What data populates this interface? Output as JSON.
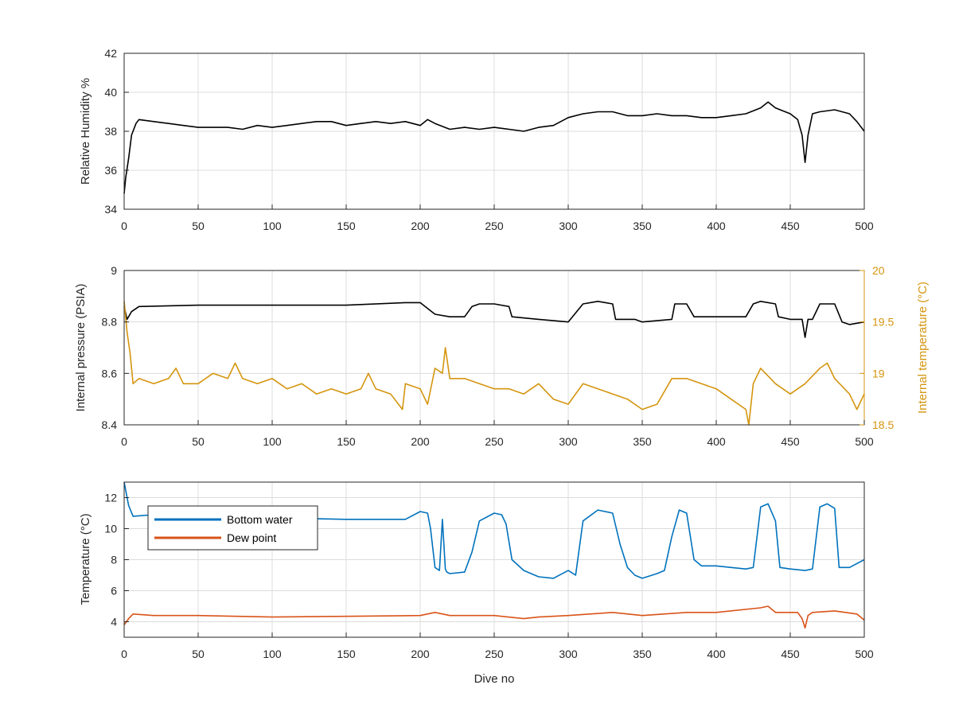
{
  "colors": {
    "black_series": "#000000",
    "internal_temperature": "#D4950F",
    "bottom_water": "#0072BD",
    "dew_point": "#D95319",
    "grid": "#DCDCDC",
    "axis": "#262626"
  },
  "chart_data": [
    {
      "type": "line",
      "xlabel": "",
      "ylabel": "Relative Humidity %",
      "xlim": [
        0,
        500
      ],
      "ylim": [
        34,
        42
      ],
      "xticks": [
        0,
        50,
        100,
        150,
        200,
        250,
        300,
        350,
        400,
        450,
        500
      ],
      "yticks": [
        34,
        36,
        38,
        40,
        42
      ],
      "grid": true,
      "series": [
        {
          "color": "#000000",
          "x": [
            0,
            1,
            3,
            5,
            8,
            10,
            20,
            30,
            40,
            50,
            60,
            70,
            80,
            90,
            100,
            110,
            120,
            130,
            140,
            150,
            160,
            170,
            180,
            190,
            200,
            205,
            210,
            220,
            230,
            240,
            250,
            260,
            270,
            280,
            290,
            300,
            310,
            320,
            330,
            340,
            350,
            360,
            370,
            380,
            390,
            400,
            410,
            420,
            430,
            435,
            440,
            450,
            455,
            458,
            460,
            462,
            465,
            470,
            480,
            490,
            495,
            500
          ],
          "y": [
            34.8,
            35.6,
            36.6,
            37.8,
            38.4,
            38.6,
            38.5,
            38.4,
            38.3,
            38.2,
            38.2,
            38.2,
            38.1,
            38.3,
            38.2,
            38.3,
            38.4,
            38.5,
            38.5,
            38.3,
            38.4,
            38.5,
            38.4,
            38.5,
            38.3,
            38.6,
            38.4,
            38.1,
            38.2,
            38.1,
            38.2,
            38.1,
            38.0,
            38.2,
            38.3,
            38.7,
            38.9,
            39.0,
            39.0,
            38.8,
            38.8,
            38.9,
            38.8,
            38.8,
            38.7,
            38.7,
            38.8,
            38.9,
            39.2,
            39.5,
            39.2,
            38.9,
            38.6,
            37.8,
            36.4,
            37.8,
            38.9,
            39.0,
            39.1,
            38.9,
            38.5,
            38.0
          ]
        }
      ]
    },
    {
      "type": "line",
      "xlabel": "",
      "ylabel": "Internal pressure (PSIA)",
      "y2label": "Internal temperature (°C)",
      "xlim": [
        0,
        500
      ],
      "ylim": [
        8.4,
        9.0
      ],
      "y2lim": [
        18.5,
        20
      ],
      "xticks": [
        0,
        50,
        100,
        150,
        200,
        250,
        300,
        350,
        400,
        450,
        500
      ],
      "yticks": [
        8.4,
        8.6,
        8.8,
        9.0
      ],
      "yticklabels": [
        "8.4",
        "8.6",
        "8.8",
        "9"
      ],
      "y2ticks": [
        18.5,
        19,
        19.5,
        20
      ],
      "y2ticklabels": [
        "18.5",
        "19",
        "19.5",
        "20"
      ],
      "grid": true,
      "series": [
        {
          "axis": "left",
          "color": "#000000",
          "x": [
            0,
            2,
            5,
            10,
            50,
            100,
            150,
            190,
            200,
            210,
            220,
            230,
            235,
            240,
            250,
            260,
            262,
            280,
            300,
            310,
            320,
            330,
            332,
            345,
            350,
            370,
            372,
            380,
            385,
            420,
            425,
            430,
            440,
            442,
            450,
            458,
            460,
            462,
            465,
            470,
            480,
            485,
            490,
            500
          ],
          "y": [
            8.86,
            8.81,
            8.84,
            8.86,
            8.865,
            8.865,
            8.865,
            8.875,
            8.875,
            8.83,
            8.82,
            8.82,
            8.86,
            8.87,
            8.87,
            8.86,
            8.82,
            8.81,
            8.8,
            8.87,
            8.88,
            8.87,
            8.81,
            8.81,
            8.8,
            8.81,
            8.87,
            8.87,
            8.82,
            8.82,
            8.87,
            8.88,
            8.87,
            8.82,
            8.81,
            8.81,
            8.74,
            8.81,
            8.81,
            8.87,
            8.87,
            8.8,
            8.79,
            8.8
          ]
        },
        {
          "axis": "right",
          "color": "#D4950F",
          "x": [
            0,
            2,
            4,
            6,
            10,
            20,
            30,
            35,
            40,
            50,
            60,
            70,
            75,
            80,
            90,
            100,
            110,
            120,
            130,
            140,
            150,
            160,
            165,
            170,
            180,
            188,
            190,
            200,
            205,
            210,
            215,
            217,
            220,
            230,
            240,
            250,
            260,
            270,
            280,
            290,
            300,
            310,
            320,
            330,
            340,
            350,
            360,
            370,
            380,
            390,
            400,
            410,
            420,
            422,
            425,
            430,
            440,
            450,
            460,
            470,
            475,
            480,
            490,
            495,
            500
          ],
          "y": [
            19.7,
            19.4,
            19.2,
            18.9,
            18.95,
            18.9,
            18.95,
            19.05,
            18.9,
            18.9,
            19.0,
            18.95,
            19.1,
            18.95,
            18.9,
            18.95,
            18.85,
            18.9,
            18.8,
            18.85,
            18.8,
            18.85,
            19.0,
            18.85,
            18.8,
            18.65,
            18.9,
            18.85,
            18.7,
            19.05,
            19.0,
            19.25,
            18.95,
            18.95,
            18.9,
            18.85,
            18.85,
            18.8,
            18.9,
            18.75,
            18.7,
            18.9,
            18.85,
            18.8,
            18.75,
            18.65,
            18.7,
            18.95,
            18.95,
            18.9,
            18.85,
            18.75,
            18.65,
            18.5,
            18.9,
            19.05,
            18.9,
            18.8,
            18.9,
            19.05,
            19.1,
            18.95,
            18.8,
            18.65,
            18.8
          ]
        }
      ]
    },
    {
      "type": "line",
      "xlabel": "Dive no",
      "ylabel": "Temperature (°C)",
      "xlim": [
        0,
        500
      ],
      "ylim": [
        3,
        13
      ],
      "xticks": [
        0,
        50,
        100,
        150,
        200,
        250,
        300,
        350,
        400,
        450,
        500
      ],
      "yticks": [
        4,
        6,
        8,
        10,
        12
      ],
      "grid": true,
      "legend": {
        "placement": "upper-left"
      },
      "series": [
        {
          "name": "Bottom water",
          "color": "#0072BD",
          "x": [
            0,
            3,
            6,
            20,
            50,
            100,
            150,
            190,
            200,
            205,
            207,
            210,
            213,
            215,
            217,
            218,
            220,
            230,
            235,
            240,
            250,
            255,
            258,
            262,
            270,
            280,
            290,
            300,
            305,
            310,
            320,
            330,
            335,
            340,
            345,
            350,
            360,
            365,
            370,
            375,
            380,
            385,
            390,
            400,
            410,
            420,
            425,
            430,
            435,
            440,
            443,
            450,
            460,
            465,
            470,
            475,
            480,
            483,
            490,
            500
          ],
          "y": [
            13.0,
            11.5,
            10.8,
            10.9,
            10.8,
            10.7,
            10.6,
            10.6,
            11.1,
            11.0,
            10.0,
            7.5,
            7.3,
            10.6,
            7.4,
            7.2,
            7.1,
            7.2,
            8.5,
            10.5,
            11.0,
            10.9,
            10.3,
            8.0,
            7.3,
            6.9,
            6.8,
            7.3,
            7.0,
            10.5,
            11.2,
            11.0,
            9.0,
            7.5,
            7.0,
            6.8,
            7.1,
            7.3,
            9.5,
            11.2,
            11.0,
            8.0,
            7.6,
            7.6,
            7.5,
            7.4,
            7.5,
            11.4,
            11.6,
            10.5,
            7.5,
            7.4,
            7.3,
            7.4,
            11.4,
            11.6,
            11.3,
            7.5,
            7.5,
            8.0
          ]
        },
        {
          "name": "Dew point",
          "color": "#D95319",
          "x": [
            0,
            3,
            6,
            20,
            50,
            100,
            150,
            200,
            210,
            220,
            250,
            270,
            280,
            300,
            330,
            350,
            380,
            400,
            430,
            435,
            440,
            455,
            458,
            460,
            462,
            465,
            480,
            495,
            500
          ],
          "y": [
            3.8,
            4.2,
            4.5,
            4.4,
            4.4,
            4.3,
            4.35,
            4.4,
            4.6,
            4.4,
            4.4,
            4.2,
            4.3,
            4.4,
            4.6,
            4.4,
            4.6,
            4.6,
            4.9,
            5.0,
            4.6,
            4.6,
            4.2,
            3.6,
            4.4,
            4.6,
            4.7,
            4.5,
            4.1
          ]
        }
      ]
    }
  ]
}
